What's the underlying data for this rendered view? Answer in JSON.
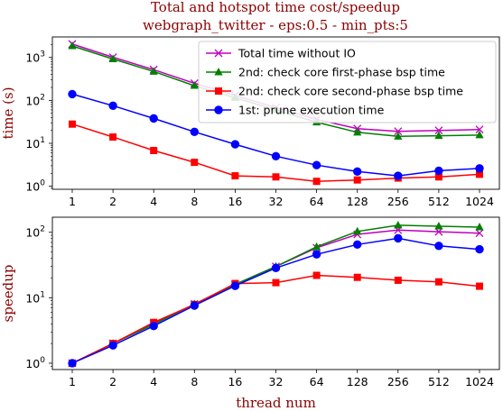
{
  "chart_data": [
    {
      "type": "line",
      "title": "Total and hotspot time cost/speedup",
      "subtitle": "webgraph_twitter - eps:0.5 - min_pts:5",
      "xlabel": "",
      "ylabel": "time (s)",
      "yscale": "log",
      "ylim": [
        0.85,
        3000
      ],
      "yticks": [
        {
          "value": 1,
          "base": "10",
          "exp": "0"
        },
        {
          "value": 10,
          "base": "10",
          "exp": "1"
        },
        {
          "value": 100,
          "base": "10",
          "exp": "2"
        },
        {
          "value": 1000,
          "base": "10",
          "exp": "3"
        }
      ],
      "categories": [
        "1",
        "2",
        "4",
        "8",
        "16",
        "32",
        "64",
        "128",
        "256",
        "512",
        "1024"
      ],
      "legend": "top-right",
      "grid": false,
      "series": [
        {
          "name": "Total time without IO",
          "color": "#bf00bf",
          "marker": "x",
          "values": [
            2050,
            1010,
            520,
            250,
            130,
            68,
            36,
            22,
            19,
            20,
            21
          ]
        },
        {
          "name": "2nd: check core first-phase bsp time",
          "color": "#008000",
          "marker": "triangle",
          "values": [
            1850,
            920,
            470,
            220,
            115,
            60,
            31,
            18,
            14.5,
            15,
            15.5
          ]
        },
        {
          "name": "2nd: check core second-phase bsp time",
          "color": "#ff0000",
          "marker": "square",
          "values": [
            28,
            14,
            6.8,
            3.6,
            1.75,
            1.65,
            1.3,
            1.4,
            1.55,
            1.65,
            1.9
          ]
        },
        {
          "name": "1st: prune execution time",
          "color": "#0000ff",
          "marker": "circle",
          "values": [
            140,
            75,
            38,
            18.5,
            9.5,
            5.0,
            3.1,
            2.2,
            1.75,
            2.3,
            2.6
          ]
        }
      ]
    },
    {
      "type": "line",
      "xlabel": "thread num",
      "ylabel": "speedup",
      "yscale": "log",
      "ylim": [
        0.8,
        170
      ],
      "yticks": [
        {
          "value": 1,
          "base": "10",
          "exp": "0"
        },
        {
          "value": 10,
          "base": "10",
          "exp": "1"
        },
        {
          "value": 100,
          "base": "10",
          "exp": "2"
        }
      ],
      "categories": [
        "1",
        "2",
        "4",
        "8",
        "16",
        "32",
        "64",
        "128",
        "256",
        "512",
        "1024"
      ],
      "grid": false,
      "series": [
        {
          "name": "Total time without IO",
          "color": "#bf00bf",
          "marker": "x",
          "values": [
            1,
            2.0,
            4.0,
            8.0,
            16,
            30,
            58,
            93,
            108,
            102,
            97
          ]
        },
        {
          "name": "2nd: check core first-phase bsp time",
          "color": "#008000",
          "marker": "triangle",
          "values": [
            1,
            2.0,
            3.9,
            8.0,
            16,
            30,
            60,
            103,
            128,
            124,
            120
          ]
        },
        {
          "name": "2nd: check core second-phase bsp time",
          "color": "#ff0000",
          "marker": "square",
          "values": [
            1,
            2.0,
            4.2,
            7.9,
            16.5,
            17,
            22,
            20.5,
            18.5,
            17.5,
            15
          ]
        },
        {
          "name": "1st: prune execution time",
          "color": "#0000ff",
          "marker": "circle",
          "values": [
            1,
            1.87,
            3.7,
            7.6,
            15.2,
            28.5,
            46,
            65,
            81,
            62,
            55
          ]
        }
      ]
    }
  ]
}
